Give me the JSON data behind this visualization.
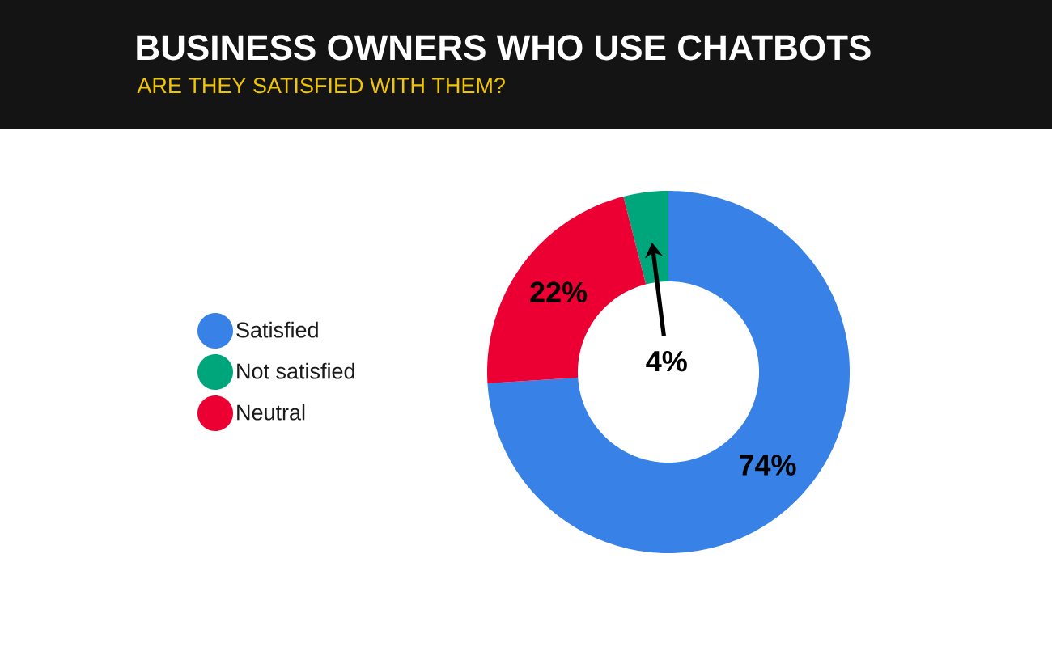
{
  "chart_data": {
    "type": "donut",
    "title": "BUSINESS OWNERS WHO USE CHATBOTS",
    "subtitle": "ARE THEY SATISFIED WITH THEM?",
    "categories": [
      "Satisfied",
      "Not satisfied",
      "Neutral"
    ],
    "values": [
      74,
      4,
      22
    ],
    "colors": [
      "#3881e6",
      "#00a67b",
      "#ec0033"
    ],
    "value_labels": [
      "74%",
      "4%",
      "22%"
    ],
    "legend": "left"
  }
}
